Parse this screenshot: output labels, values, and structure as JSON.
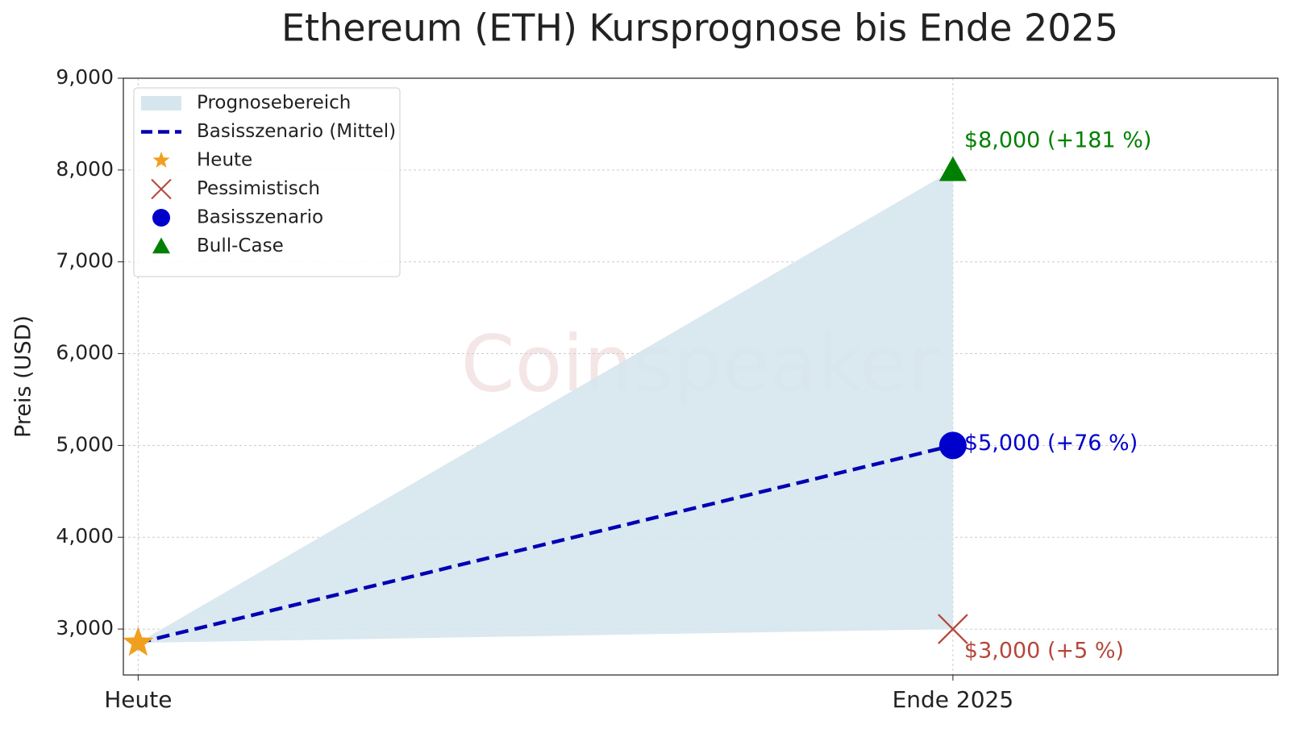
{
  "chart_data": {
    "type": "line",
    "title": "Ethereum (ETH) Kursprognose bis Ende 2025",
    "ylabel": "Preis (USD)",
    "watermark": "Coinspeaker",
    "categories": [
      "Heute",
      "Ende 2025"
    ],
    "ylim": [
      2500,
      9000
    ],
    "yticks": [
      {
        "value": 3000,
        "label": "3,000"
      },
      {
        "value": 4000,
        "label": "4,000"
      },
      {
        "value": 5000,
        "label": "5,000"
      },
      {
        "value": 6000,
        "label": "6,000"
      },
      {
        "value": 7000,
        "label": "7,000"
      },
      {
        "value": 8000,
        "label": "8,000"
      },
      {
        "value": 9000,
        "label": "9,000"
      }
    ],
    "grid": true,
    "legend_loc": "upper left",
    "series": [
      {
        "name": "Prognosebereich",
        "style": "band",
        "color": "#d6e6ee",
        "low": [
          2850,
          3000
        ],
        "high": [
          2850,
          8000
        ]
      },
      {
        "name": "Basisszenario (Mittel)",
        "style": "dashed",
        "color": "#0000b3",
        "values": [
          2850,
          5000
        ]
      },
      {
        "name": "Heute",
        "style": "star",
        "color": "#f0a020",
        "values": [
          2850,
          null
        ]
      },
      {
        "name": "Pessimistisch",
        "style": "x",
        "color": "#b5473a",
        "values": [
          null,
          3000
        ],
        "value_labels": [
          null,
          "$3,000 (+5 %)"
        ]
      },
      {
        "name": "Basisszenario",
        "style": "circle",
        "color": "#0000cc",
        "values": [
          null,
          5000
        ],
        "value_labels": [
          null,
          "$5,000 (+76 %)"
        ]
      },
      {
        "name": "Bull-Case",
        "style": "triangle",
        "color": "#008000",
        "values": [
          null,
          8000
        ],
        "value_labels": [
          null,
          "$8,000 (+181 %)"
        ]
      }
    ]
  }
}
